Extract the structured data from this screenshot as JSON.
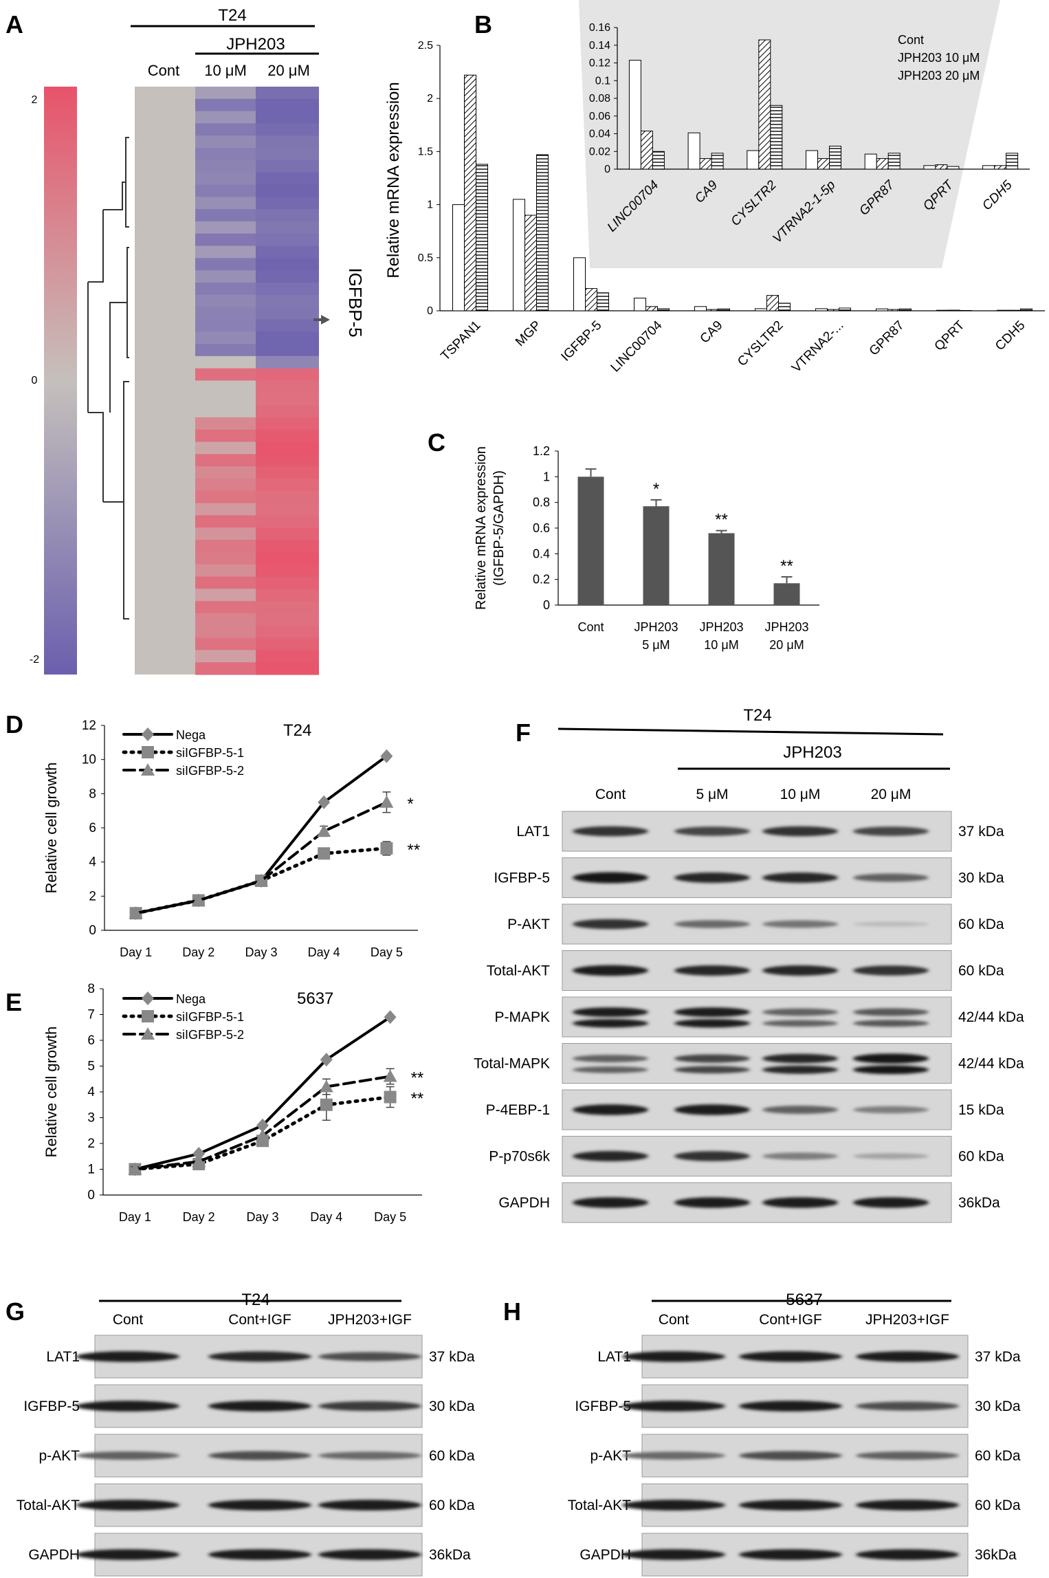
{
  "panel_letters": {
    "a": "A",
    "b": "B",
    "c": "C",
    "d": "D",
    "e": "E",
    "f": "F",
    "g": "G",
    "h": "H"
  },
  "panel_a": {
    "top_label": "T24",
    "drug_label": "JPH203",
    "columns": [
      "Cont",
      "10 μM",
      "20 μM"
    ],
    "scale_labels": [
      "2",
      "0",
      "-2"
    ],
    "gene_label": "IGFBP-5",
    "colors": {
      "high": "#e8536a",
      "mid": "#c5c0bc",
      "low": "#6b5fae"
    }
  },
  "chart_data": [
    {
      "id": "B-main",
      "type": "bar",
      "ylabel": "Relative mRNA expression",
      "ylim": [
        0,
        2.5
      ],
      "yticks": [
        "0",
        "0.5",
        "1",
        "1.5",
        "2",
        "2.5"
      ],
      "categories": [
        "TSPAN1",
        "MGP",
        "IGFBP-5",
        "LINC00704",
        "CA9",
        "CYSLTR2",
        "VTRNA2-...",
        "GPR87",
        "QPRT",
        "CDH5"
      ],
      "series": [
        {
          "name": "Cont",
          "values": [
            1.0,
            1.05,
            0.5,
            0.12,
            0.04,
            0.02,
            0.02,
            0.018,
            0.005,
            0.005
          ]
        },
        {
          "name": "JPH203 10 μM",
          "values": [
            2.22,
            0.9,
            0.21,
            0.04,
            0.012,
            0.145,
            0.012,
            0.012,
            0.006,
            0.005
          ]
        },
        {
          "name": "JPH203 20 μM",
          "values": [
            1.38,
            1.47,
            0.17,
            0.02,
            0.018,
            0.072,
            0.026,
            0.018,
            0.003,
            0.018
          ]
        }
      ]
    },
    {
      "id": "B-inset",
      "type": "bar",
      "ylim": [
        0,
        0.16
      ],
      "yticks": [
        "0",
        "0.02",
        "0.04",
        "0.06",
        "0.08",
        "0.1",
        "0.12",
        "0.14",
        "0.16"
      ],
      "categories": [
        "LINC00704",
        "CA9",
        "CYSLTR2",
        "VTRNA2-1-5p",
        "GPR87",
        "QPRT",
        "CDH5"
      ],
      "legend": [
        "Cont",
        "JPH203 10 μM",
        "JPH203 20 μM"
      ],
      "series": [
        {
          "name": "Cont",
          "values": [
            0.123,
            0.041,
            0.021,
            0.021,
            0.017,
            0.004,
            0.004
          ]
        },
        {
          "name": "JPH203 10 μM",
          "values": [
            0.043,
            0.012,
            0.146,
            0.012,
            0.012,
            0.005,
            0.004
          ]
        },
        {
          "name": "JPH203 20 μM",
          "values": [
            0.02,
            0.018,
            0.072,
            0.026,
            0.018,
            0.003,
            0.018
          ]
        }
      ]
    },
    {
      "id": "C",
      "type": "bar",
      "ylabel_lines": [
        "Relative mRNA expression",
        "(IGFBP-5/GAPDH)"
      ],
      "ylim": [
        0,
        1.2
      ],
      "yticks": [
        "0",
        "0.2",
        "0.4",
        "0.6",
        "0.8",
        "1",
        "1.2"
      ],
      "categories": [
        [
          "Cont"
        ],
        [
          "JPH203",
          "5 μM"
        ],
        [
          "JPH203",
          "10 μM"
        ],
        [
          "JPH203",
          "20 μM"
        ]
      ],
      "values": [
        1.0,
        0.77,
        0.56,
        0.17
      ],
      "errors": [
        0.06,
        0.05,
        0.02,
        0.05
      ],
      "significance": [
        "",
        "*",
        "**",
        "**"
      ]
    },
    {
      "id": "D",
      "type": "line",
      "cell_line": "T24",
      "ylabel": "Relative cell growth",
      "ylim": [
        0,
        12
      ],
      "yticks": [
        "0",
        "2",
        "4",
        "6",
        "8",
        "10",
        "12"
      ],
      "categories": [
        "Day 1",
        "Day 2",
        "Day 3",
        "Day 4",
        "Day 5"
      ],
      "series": [
        {
          "name": "Nega",
          "values": [
            1.0,
            1.75,
            2.9,
            7.5,
            10.2
          ],
          "errors": [
            0,
            0,
            0,
            0,
            0
          ]
        },
        {
          "name": "siIGFBP-5-1",
          "values": [
            1.0,
            1.75,
            2.9,
            4.5,
            4.8
          ],
          "errors": [
            0,
            0,
            0.1,
            0.2,
            0.4
          ]
        },
        {
          "name": "siIGFBP-5-2",
          "values": [
            1.0,
            1.75,
            2.9,
            5.8,
            7.5
          ],
          "errors": [
            0,
            0,
            0,
            0.3,
            0.6
          ]
        }
      ],
      "significance": [
        {
          "series": 2,
          "label": "*"
        },
        {
          "series": 1,
          "label": "**"
        }
      ]
    },
    {
      "id": "E",
      "type": "line",
      "cell_line": "5637",
      "ylabel": "Relative cell growth",
      "ylim": [
        0,
        8
      ],
      "yticks": [
        "0",
        "1",
        "2",
        "3",
        "4",
        "5",
        "6",
        "7",
        "8"
      ],
      "categories": [
        "Day 1",
        "Day 2",
        "Day 3",
        "Day 4",
        "Day 5"
      ],
      "series": [
        {
          "name": "Nega",
          "values": [
            1.0,
            1.6,
            2.7,
            5.25,
            6.9
          ],
          "errors": [
            0.15,
            0,
            0,
            0,
            0
          ]
        },
        {
          "name": "siIGFBP-5-1",
          "values": [
            1.0,
            1.2,
            2.1,
            3.5,
            3.8
          ],
          "errors": [
            0.2,
            0.1,
            0.1,
            0.6,
            0.4
          ]
        },
        {
          "name": "siIGFBP-5-2",
          "values": [
            1.0,
            1.3,
            2.3,
            4.2,
            4.6
          ],
          "errors": [
            0.1,
            0,
            0,
            0.3,
            0.3
          ]
        }
      ],
      "significance": [
        {
          "series": 2,
          "label": "**"
        },
        {
          "series": 1,
          "label": "**"
        }
      ]
    }
  ],
  "blot_f": {
    "top_label": "T24",
    "drug_label": "JPH203",
    "lanes": [
      "Cont",
      "5 μM",
      "10 μM",
      "20 μM"
    ],
    "rows": [
      {
        "protein": "LAT1",
        "size": "37 kDa",
        "intensity": [
          0.85,
          0.75,
          0.85,
          0.75
        ],
        "double": false
      },
      {
        "protein": "IGFBP-5",
        "size": "30 kDa",
        "intensity": [
          1.0,
          0.9,
          0.9,
          0.6
        ],
        "double": false
      },
      {
        "protein": "P-AKT",
        "size": "60 kDa",
        "intensity": [
          0.85,
          0.55,
          0.5,
          0.12
        ],
        "double": false
      },
      {
        "protein": "Total-AKT",
        "size": "60 kDa",
        "intensity": [
          0.95,
          0.9,
          0.9,
          0.85
        ],
        "double": false
      },
      {
        "protein": "P-MAPK",
        "size": "42/44 kDa",
        "intensity": [
          0.95,
          0.95,
          0.6,
          0.65
        ],
        "double": true
      },
      {
        "protein": "Total-MAPK",
        "size": "42/44 kDa",
        "intensity": [
          0.6,
          0.75,
          0.9,
          1.0
        ],
        "double": true
      },
      {
        "protein": "P-4EBP-1",
        "size": "15 kDa",
        "intensity": [
          0.95,
          0.95,
          0.6,
          0.45
        ],
        "double": false
      },
      {
        "protein": "P-p70s6k",
        "size": "60 kDa",
        "intensity": [
          0.9,
          0.85,
          0.45,
          0.25
        ],
        "double": false
      },
      {
        "protein": "GAPDH",
        "size": "36kDa",
        "intensity": [
          0.95,
          0.95,
          0.95,
          0.95
        ],
        "double": false
      }
    ]
  },
  "blot_g": {
    "top_label": "T24",
    "lanes": [
      "Cont",
      "Cont+IGF",
      "JPH203+IGF"
    ],
    "rows": [
      {
        "protein": "LAT1",
        "size": "37 kDa",
        "intensity": [
          0.95,
          0.9,
          0.7
        ]
      },
      {
        "protein": "IGFBP-5",
        "size": "30 kDa",
        "intensity": [
          0.95,
          0.95,
          0.8
        ]
      },
      {
        "protein": "p-AKT",
        "size": "60 kDa",
        "intensity": [
          0.6,
          0.7,
          0.55
        ]
      },
      {
        "protein": "Total-AKT",
        "size": "60 kDa",
        "intensity": [
          0.95,
          0.95,
          0.95
        ]
      },
      {
        "protein": "GAPDH",
        "size": "36kDa",
        "intensity": [
          0.95,
          0.95,
          0.95
        ]
      }
    ]
  },
  "blot_h": {
    "top_label": "5637",
    "lanes": [
      "Cont",
      "Cont+IGF",
      "JPH203+IGF"
    ],
    "rows": [
      {
        "protein": "LAT1",
        "size": "37 kDa",
        "intensity": [
          0.95,
          0.95,
          0.95
        ]
      },
      {
        "protein": "IGFBP-5",
        "size": "30 kDa",
        "intensity": [
          0.95,
          0.95,
          0.7
        ]
      },
      {
        "protein": "p-AKT",
        "size": "60 kDa",
        "intensity": [
          0.55,
          0.7,
          0.6
        ]
      },
      {
        "protein": "Total-AKT",
        "size": "60 kDa",
        "intensity": [
          0.95,
          0.95,
          0.95
        ]
      },
      {
        "protein": "GAPDH",
        "size": "36kDa",
        "intensity": [
          0.95,
          0.95,
          0.95
        ]
      }
    ]
  }
}
